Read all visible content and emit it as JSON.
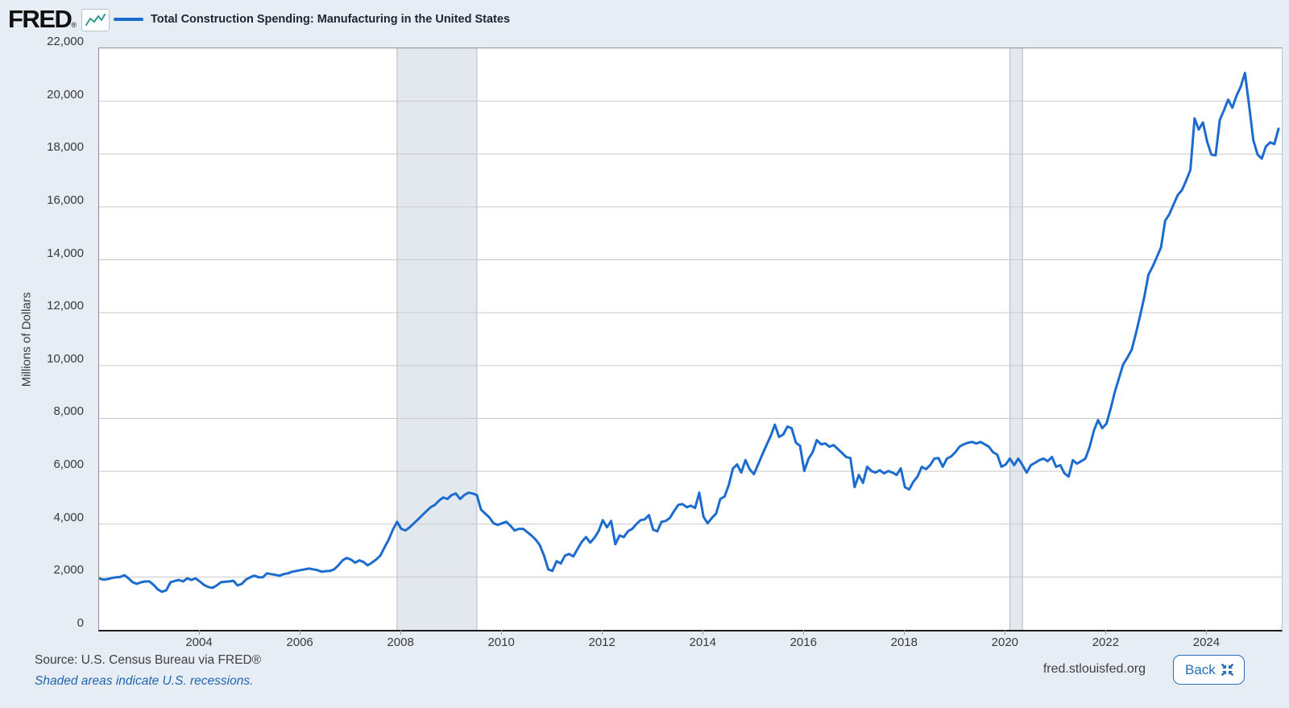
{
  "header": {
    "logo_text": "FRED",
    "logo_registered": "®",
    "legend_label": "Total Construction Spending: Manufacturing in the United States"
  },
  "footer": {
    "source_text": "Source: U.S. Census Bureau via FRED®",
    "recession_note": "Shaded areas indicate U.S. recessions.",
    "site_url": "fred.stlouisfed.org",
    "back_label": "Back"
  },
  "colors": {
    "page_bg": "#e6edf5",
    "plot_bg": "#ffffff",
    "gridline": "#c9c9c9",
    "recession_band": "#e3e8ee",
    "recession_edge": "#b3bac4",
    "line": "#1b6cce",
    "accent_blue": "#2a6fb5",
    "logo_spark": "#2a9d8f",
    "axis_text": "#3a3a3a"
  },
  "chart_data": {
    "type": "line",
    "title": "Total Construction Spending: Manufacturing in the United States",
    "ylabel": "Millions of Dollars",
    "frequency": "monthly",
    "x_start": "2002-01",
    "x_end": "2025-06",
    "ylim": [
      0,
      22000
    ],
    "yticks": [
      0,
      2000,
      4000,
      6000,
      8000,
      10000,
      12000,
      14000,
      16000,
      18000,
      20000,
      22000
    ],
    "xticks": [
      2004,
      2006,
      2008,
      2010,
      2012,
      2014,
      2016,
      2018,
      2020,
      2022,
      2024
    ],
    "grid": "horizontal",
    "legend_position": "top-left",
    "recessions": [
      {
        "start": "2007-12",
        "end": "2009-07"
      },
      {
        "start": "2020-02",
        "end": "2020-05"
      }
    ],
    "series": [
      {
        "name": "Total Construction Spending: Manufacturing in the United States",
        "units": "Millions of Dollars",
        "values": [
          1950,
          1900,
          1920,
          1960,
          1990,
          2000,
          2070,
          1950,
          1800,
          1740,
          1800,
          1830,
          1830,
          1700,
          1530,
          1440,
          1500,
          1800,
          1850,
          1890,
          1830,
          1950,
          1890,
          1950,
          1830,
          1700,
          1620,
          1590,
          1680,
          1800,
          1820,
          1830,
          1860,
          1680,
          1740,
          1900,
          1990,
          2050,
          1990,
          1990,
          2140,
          2110,
          2080,
          2050,
          2110,
          2140,
          2200,
          2230,
          2260,
          2290,
          2320,
          2290,
          2260,
          2200,
          2220,
          2230,
          2290,
          2440,
          2630,
          2720,
          2660,
          2540,
          2630,
          2570,
          2440,
          2540,
          2660,
          2810,
          3120,
          3420,
          3790,
          4090,
          3820,
          3760,
          3880,
          4030,
          4180,
          4340,
          4490,
          4640,
          4730,
          4890,
          5010,
          4950,
          5100,
          5160,
          4950,
          5100,
          5190,
          5160,
          5100,
          4550,
          4400,
          4250,
          4030,
          3970,
          4030,
          4090,
          3940,
          3760,
          3820,
          3820,
          3700,
          3570,
          3420,
          3210,
          2810,
          2290,
          2230,
          2600,
          2510,
          2810,
          2870,
          2780,
          3060,
          3330,
          3510,
          3300,
          3480,
          3730,
          4150,
          3880,
          4120,
          3240,
          3570,
          3510,
          3730,
          3820,
          4000,
          4150,
          4180,
          4340,
          3790,
          3730,
          4090,
          4120,
          4240,
          4500,
          4730,
          4760,
          4640,
          4700,
          4610,
          5190,
          4280,
          4030,
          4240,
          4400,
          4950,
          5040,
          5470,
          6100,
          6260,
          5950,
          6420,
          6080,
          5890,
          6260,
          6630,
          6990,
          7330,
          7760,
          7300,
          7390,
          7690,
          7630,
          7080,
          6960,
          6010,
          6470,
          6720,
          7180,
          7020,
          7050,
          6930,
          6990,
          6840,
          6690,
          6540,
          6500,
          5400,
          5860,
          5560,
          6170,
          6010,
          5950,
          6040,
          5920,
          6010,
          5950,
          5860,
          6110,
          5400,
          5310,
          5600,
          5800,
          6170,
          6080,
          6230,
          6480,
          6500,
          6170,
          6480,
          6560,
          6720,
          6930,
          7020,
          7080,
          7110,
          7050,
          7110,
          7020,
          6930,
          6720,
          6630,
          6170,
          6260,
          6480,
          6230,
          6480,
          6230,
          5950,
          6230,
          6320,
          6420,
          6480,
          6380,
          6540,
          6170,
          6230,
          5920,
          5800,
          6420,
          6290,
          6380,
          6480,
          6930,
          7540,
          7935,
          7630,
          7800,
          8365,
          9005,
          9525,
          10045,
          10300,
          10595,
          11205,
          11875,
          12580,
          13435,
          13740,
          14100,
          14470,
          15480,
          15725,
          16100,
          16455,
          16640,
          17000,
          17400,
          19350,
          18930,
          19200,
          18470,
          17980,
          17950,
          19290,
          19660,
          20060,
          19750,
          20210,
          20550,
          21070,
          19840,
          18530,
          17980,
          17830,
          18290,
          18440,
          18380,
          18960
        ]
      }
    ]
  }
}
